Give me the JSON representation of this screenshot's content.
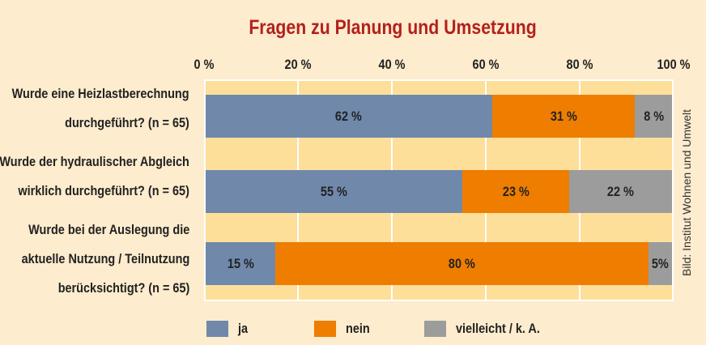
{
  "chart_data": {
    "type": "bar",
    "orientation": "horizontal",
    "stacked": true,
    "title": "Fragen zu Planung und Umsetzung",
    "categories": [
      [
        "Wurde eine Heizlastberechnung",
        "durchgeführt? (n = 65)"
      ],
      [
        "Wurde der hydraulischer Abgleich",
        "wirklich durchgeführt? (n = 65)"
      ],
      [
        "Wurde bei der Auslegung die",
        "aktuelle Nutzung / Teilnutzung",
        "berücksichtigt? (n = 65)"
      ]
    ],
    "series": [
      {
        "name": "ja",
        "color": "#7089aa",
        "values": [
          62,
          55,
          15
        ],
        "labels": [
          "62 %",
          "55 %",
          "15 %"
        ]
      },
      {
        "name": "nein",
        "color": "#ee7d00",
        "values": [
          31,
          23,
          80
        ],
        "labels": [
          "31 %",
          "23 %",
          "80 %"
        ]
      },
      {
        "name": "vielleicht / k. A.",
        "color": "#9c9c9c",
        "values": [
          8,
          22,
          5
        ],
        "labels": [
          "8 %",
          "22 %",
          "5%"
        ]
      }
    ],
    "xlim": [
      0,
      100
    ],
    "xticks": [
      "0 %",
      "20 %",
      "40 %",
      "60 %",
      "80 %",
      "100 %"
    ],
    "grid": true,
    "legend": "bottom",
    "credit": "Bild: Institut Wohnen und Umwelt"
  }
}
